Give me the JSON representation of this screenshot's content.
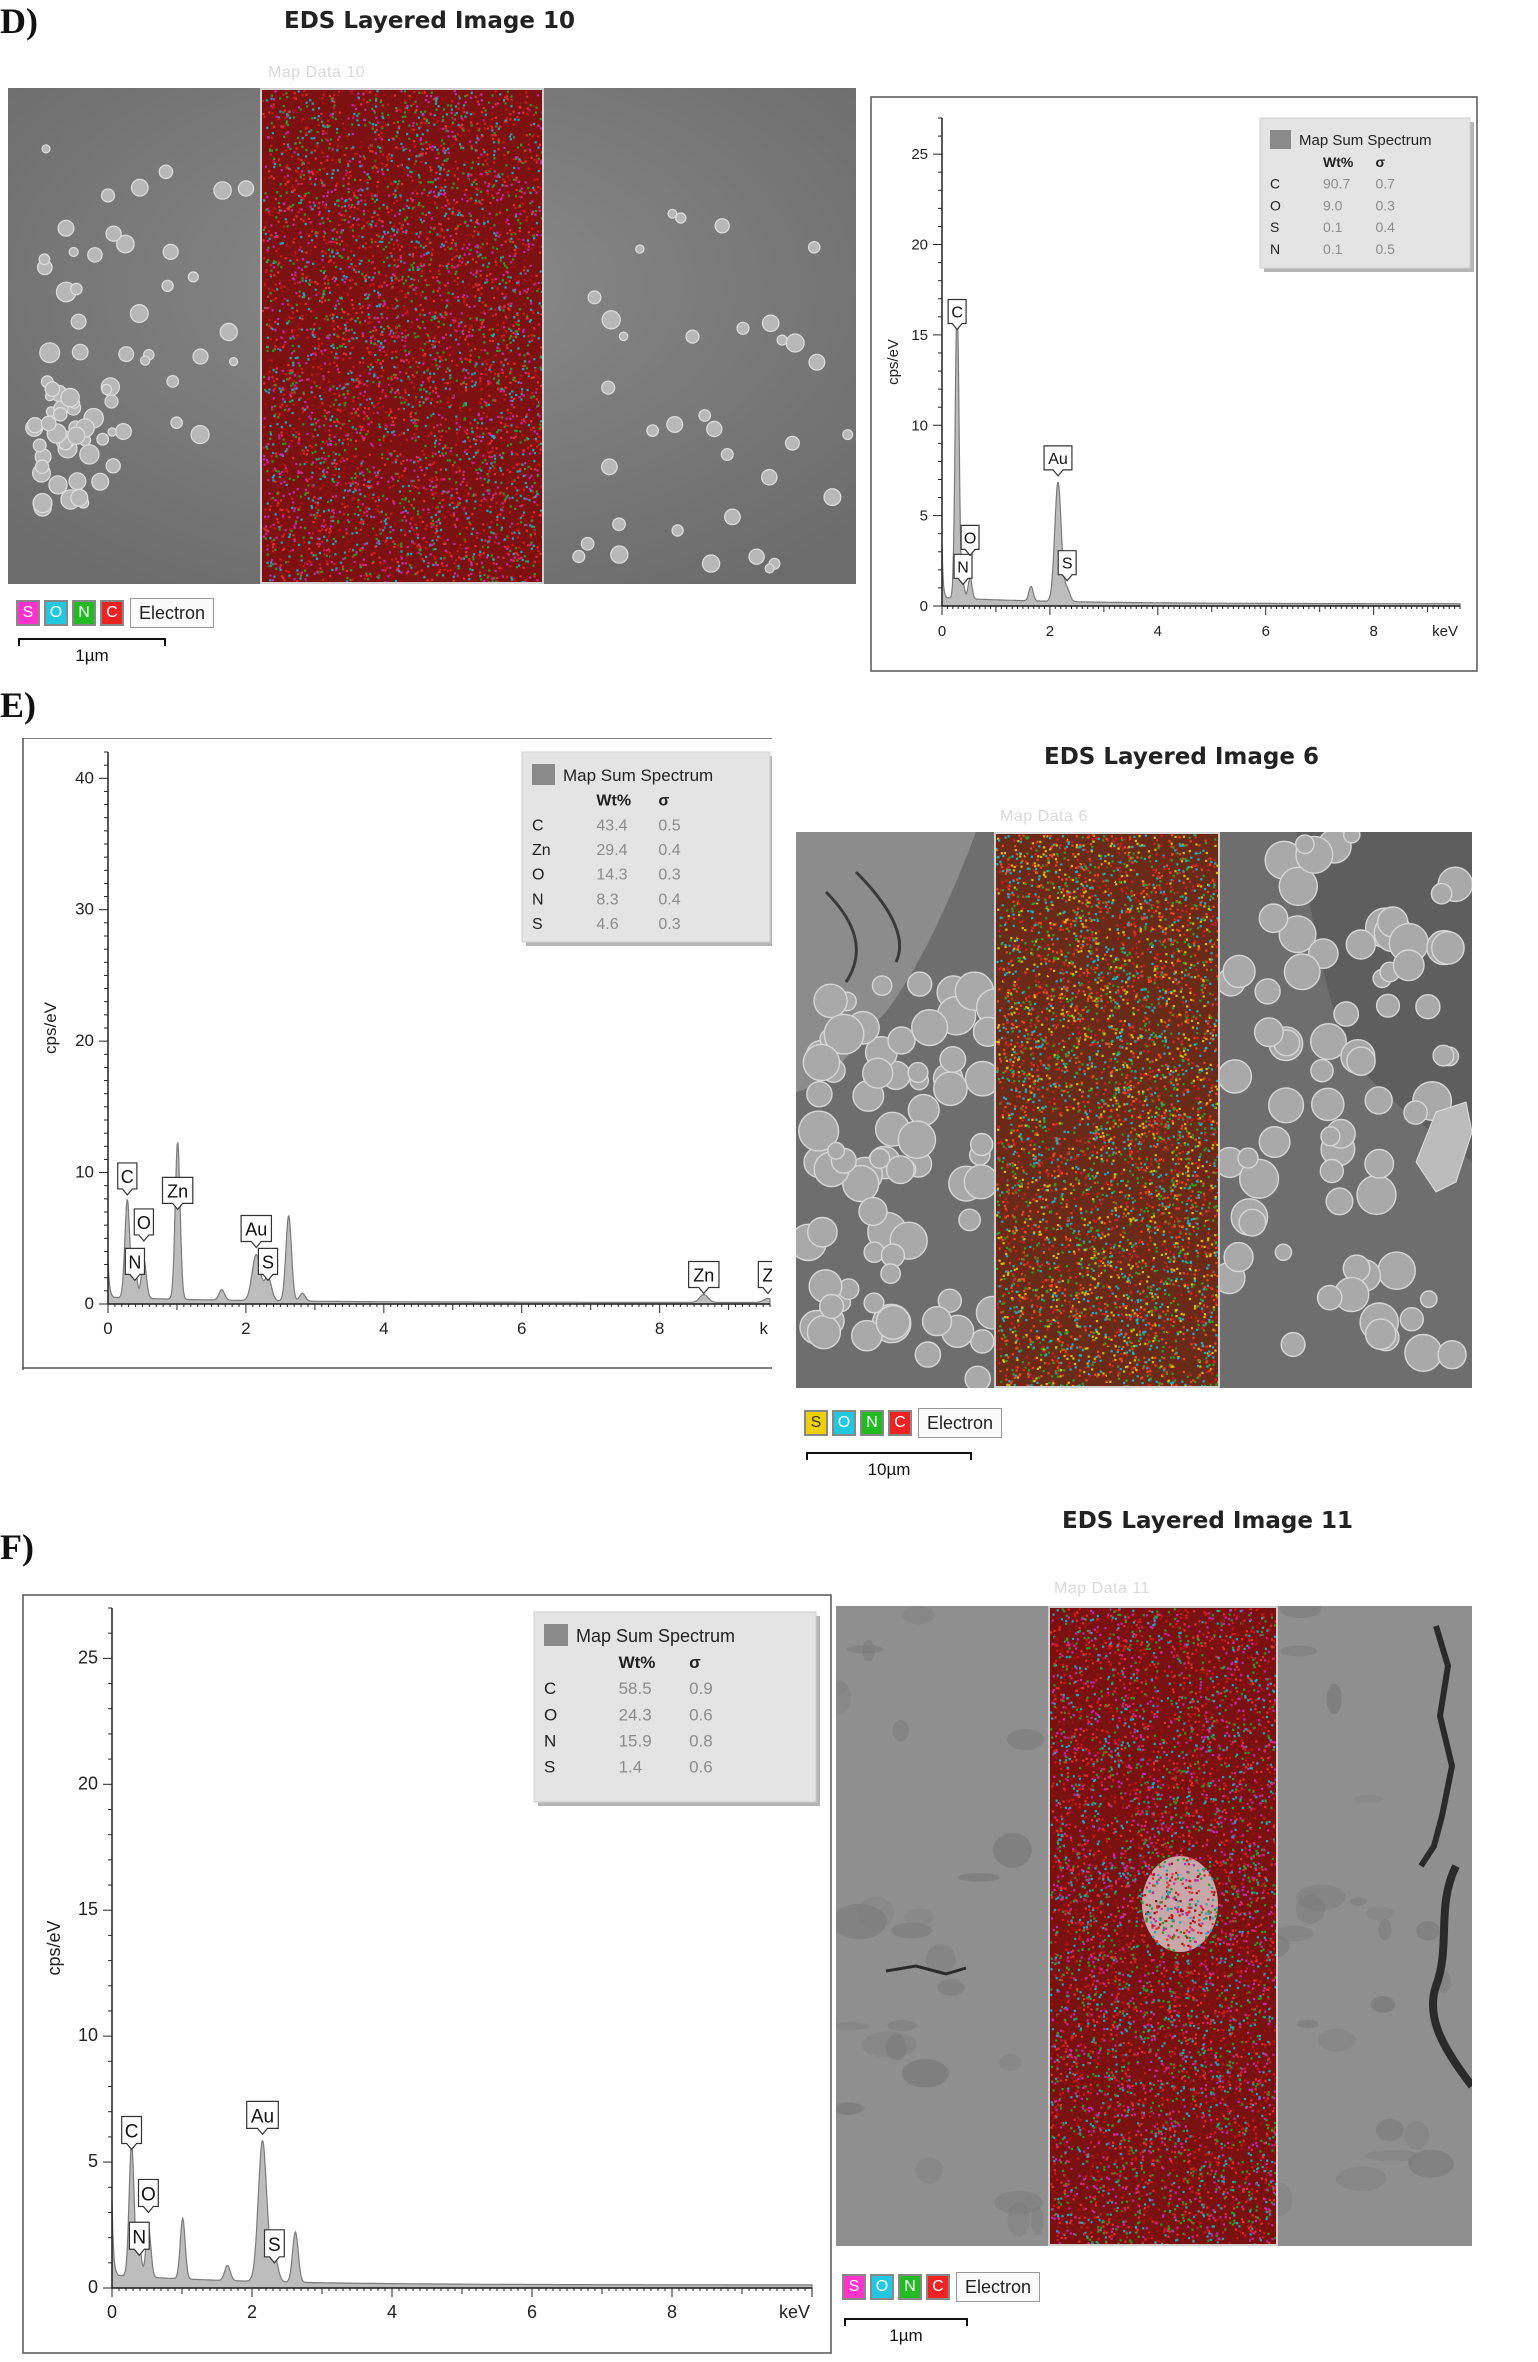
{
  "figures": [
    {
      "id": "D",
      "panel_label": "D)",
      "eds_title": "EDS Layered Image 10",
      "map_label": "Map Data 10",
      "legend_elements": [
        {
          "symbol": "S",
          "color": "#ff33cc"
        },
        {
          "symbol": "O",
          "color": "#22c8e0"
        },
        {
          "symbol": "N",
          "color": "#22bb22"
        },
        {
          "symbol": "C",
          "color": "#ee2222"
        }
      ],
      "legend_mode": "Electron",
      "scale_bar": "1µm"
    },
    {
      "id": "E",
      "panel_label": "E)",
      "eds_title": "EDS Layered Image 6",
      "map_label": "Map Data 6",
      "legend_elements": [
        {
          "symbol": "S",
          "color": "#f0d000"
        },
        {
          "symbol": "O",
          "color": "#22c8e0"
        },
        {
          "symbol": "N",
          "color": "#22bb22"
        },
        {
          "symbol": "C",
          "color": "#ee2222"
        }
      ],
      "legend_mode": "Electron",
      "scale_bar": "10µm"
    },
    {
      "id": "F",
      "panel_label": "F)",
      "eds_title": "EDS Layered Image 11",
      "map_label": "Map Data 11",
      "legend_elements": [
        {
          "symbol": "S",
          "color": "#ff33cc"
        },
        {
          "symbol": "O",
          "color": "#22c8e0"
        },
        {
          "symbol": "N",
          "color": "#22bb22"
        },
        {
          "symbol": "C",
          "color": "#ee2222"
        }
      ],
      "legend_mode": "Electron",
      "scale_bar": "1µm"
    }
  ],
  "chart_data": [
    {
      "id": "D",
      "type": "area",
      "ylabel": "cps/eV",
      "xunit": "keV",
      "xlim": [
        0,
        9.6
      ],
      "ylim": [
        0,
        27
      ],
      "xticks": [
        0,
        2,
        4,
        6,
        8
      ],
      "yticks": [
        0,
        5,
        10,
        15,
        20,
        25
      ],
      "legend": {
        "title": "Map Sum Spectrum",
        "col_wt": "Wt%",
        "col_sigma": "σ",
        "rows": [
          {
            "element": "C",
            "wt": "90.7",
            "sigma": "0.7"
          },
          {
            "element": "O",
            "wt": "9.0",
            "sigma": "0.3"
          },
          {
            "element": "S",
            "wt": "0.1",
            "sigma": "0.4"
          },
          {
            "element": "N",
            "wt": "0.1",
            "sigma": "0.5"
          }
        ]
      },
      "peaks": [
        {
          "x": 0.28,
          "y": 16.5,
          "w": 0.035
        },
        {
          "x": 0.39,
          "y": 0.8,
          "w": 0.03
        },
        {
          "x": 0.52,
          "y": 1.2,
          "w": 0.035
        },
        {
          "x": 1.65,
          "y": 0.8,
          "w": 0.04
        },
        {
          "x": 2.15,
          "y": 6.6,
          "w": 0.06
        },
        {
          "x": 2.32,
          "y": 0.7,
          "w": 0.05
        }
      ],
      "background": {
        "level": 0.35,
        "decay": 2.2
      },
      "annotations": [
        {
          "label": "C",
          "x": 0.28,
          "y": 15.3
        },
        {
          "label": "N",
          "x": 0.39,
          "y": 1.2
        },
        {
          "label": "O",
          "x": 0.52,
          "y": 2.8
        },
        {
          "label": "Au",
          "x": 2.15,
          "y": 7.2
        },
        {
          "label": "S",
          "x": 2.32,
          "y": 1.4
        }
      ]
    },
    {
      "id": "E",
      "type": "area",
      "ylabel": "cps/eV",
      "xunit": "keV",
      "xlim": [
        0,
        9.6
      ],
      "ylim": [
        0,
        42
      ],
      "xticks": [
        0,
        2,
        4,
        6,
        8
      ],
      "yticks": [
        0,
        10,
        20,
        30,
        40
      ],
      "legend": {
        "title": "Map Sum Spectrum",
        "col_wt": "Wt%",
        "col_sigma": "σ",
        "rows": [
          {
            "element": "C",
            "wt": "43.4",
            "sigma": "0.5"
          },
          {
            "element": "Zn",
            "wt": "29.4",
            "sigma": "0.4"
          },
          {
            "element": "O",
            "wt": "14.3",
            "sigma": "0.3"
          },
          {
            "element": "N",
            "wt": "8.3",
            "sigma": "0.4"
          },
          {
            "element": "S",
            "wt": "4.6",
            "sigma": "0.3"
          }
        ]
      },
      "peaks": [
        {
          "x": 0.28,
          "y": 7.5,
          "w": 0.035
        },
        {
          "x": 0.39,
          "y": 2.5,
          "w": 0.03
        },
        {
          "x": 0.52,
          "y": 3.0,
          "w": 0.035
        },
        {
          "x": 1.01,
          "y": 12.0,
          "w": 0.035
        },
        {
          "x": 1.65,
          "y": 0.8,
          "w": 0.04
        },
        {
          "x": 2.15,
          "y": 3.5,
          "w": 0.06
        },
        {
          "x": 2.32,
          "y": 1.8,
          "w": 0.05
        },
        {
          "x": 2.62,
          "y": 6.5,
          "w": 0.04
        },
        {
          "x": 2.82,
          "y": 0.6,
          "w": 0.04
        },
        {
          "x": 8.64,
          "y": 0.6,
          "w": 0.06
        },
        {
          "x": 9.57,
          "y": 0.3,
          "w": 0.06
        }
      ],
      "background": {
        "level": 0.4,
        "decay": 2.0
      },
      "annotations": [
        {
          "label": "C",
          "x": 0.28,
          "y": 8.3
        },
        {
          "label": "N",
          "x": 0.39,
          "y": 1.8
        },
        {
          "label": "O",
          "x": 0.52,
          "y": 4.8
        },
        {
          "label": "Zn",
          "x": 1.01,
          "y": 7.2
        },
        {
          "label": "Au",
          "x": 2.15,
          "y": 4.3
        },
        {
          "label": "S",
          "x": 2.32,
          "y": 1.8
        },
        {
          "label": "Zn",
          "x": 8.64,
          "y": 0.8
        },
        {
          "label": "Z",
          "x": 9.57,
          "y": 0.8
        }
      ]
    },
    {
      "id": "F",
      "type": "area",
      "ylabel": "cps/eV",
      "xunit": "keV",
      "xlim": [
        0,
        10.0
      ],
      "ylim": [
        0,
        27
      ],
      "xticks": [
        0,
        2,
        4,
        6,
        8
      ],
      "yticks": [
        0,
        5,
        10,
        15,
        20,
        25
      ],
      "legend": {
        "title": "Map Sum Spectrum",
        "col_wt": "Wt%",
        "col_sigma": "σ",
        "rows": [
          {
            "element": "C",
            "wt": "58.5",
            "sigma": "0.9"
          },
          {
            "element": "O",
            "wt": "24.3",
            "sigma": "0.6"
          },
          {
            "element": "N",
            "wt": "15.9",
            "sigma": "0.8"
          },
          {
            "element": "S",
            "wt": "1.4",
            "sigma": "0.6"
          }
        ]
      },
      "peaks": [
        {
          "x": 0.28,
          "y": 5.3,
          "w": 0.035
        },
        {
          "x": 0.39,
          "y": 1.2,
          "w": 0.03
        },
        {
          "x": 0.52,
          "y": 2.0,
          "w": 0.035
        },
        {
          "x": 1.01,
          "y": 2.4,
          "w": 0.035
        },
        {
          "x": 1.65,
          "y": 0.6,
          "w": 0.04
        },
        {
          "x": 2.15,
          "y": 5.6,
          "w": 0.06
        },
        {
          "x": 2.32,
          "y": 1.0,
          "w": 0.05
        },
        {
          "x": 2.62,
          "y": 2.0,
          "w": 0.04
        }
      ],
      "background": {
        "level": 0.4,
        "decay": 2.0
      },
      "annotations": [
        {
          "label": "C",
          "x": 0.28,
          "y": 5.5
        },
        {
          "label": "N",
          "x": 0.39,
          "y": 1.3
        },
        {
          "label": "O",
          "x": 0.52,
          "y": 3.0
        },
        {
          "label": "Au",
          "x": 2.15,
          "y": 6.1
        },
        {
          "label": "S",
          "x": 2.32,
          "y": 1.0
        }
      ]
    }
  ]
}
